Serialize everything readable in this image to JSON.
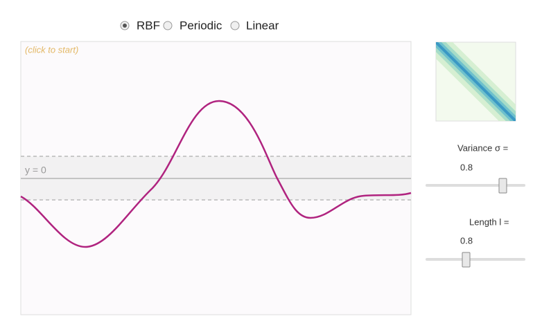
{
  "radio_options": [
    {
      "label": "RBF",
      "selected": true
    },
    {
      "label": "Periodic",
      "selected": false
    },
    {
      "label": "Linear",
      "selected": false
    }
  ],
  "plot": {
    "hint": "(click to start)",
    "zero_label": "y = 0"
  },
  "controls": [
    {
      "label": "Variance σ =",
      "value": 0.8
    },
    {
      "label": "Length l =",
      "value": 0.8
    }
  ]
}
